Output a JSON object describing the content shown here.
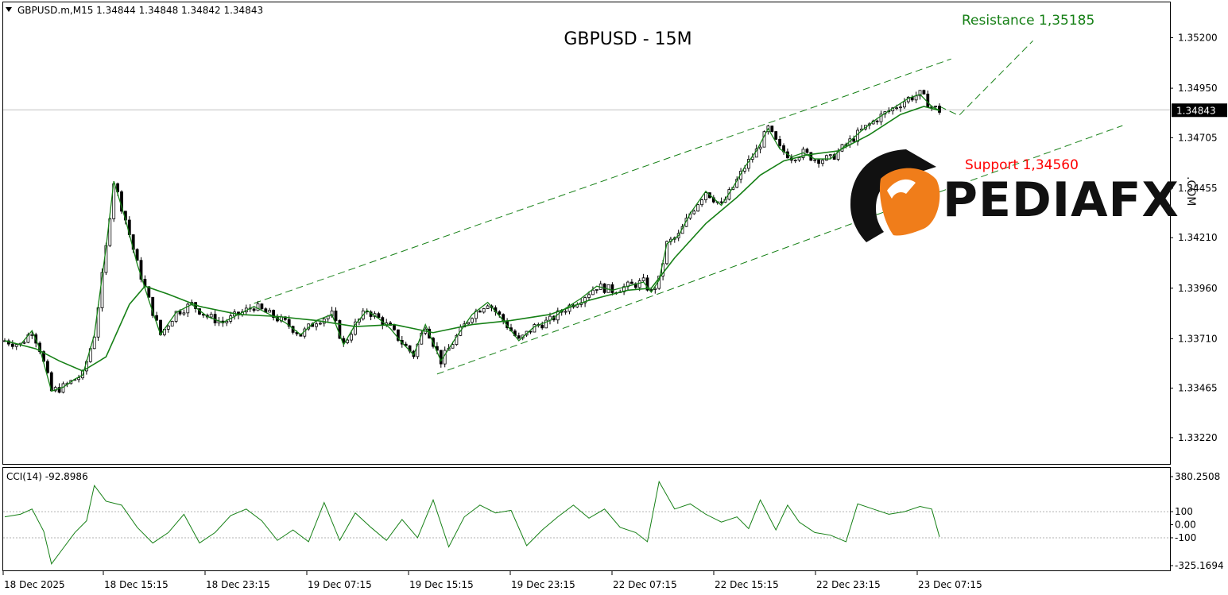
{
  "header": {
    "symbol_line": "GBPUSD.m,M15  1.34844 1.34848 1.34842 1.34843",
    "title": "GBPUSD - 15M"
  },
  "annotations": {
    "resistance": "Resistance 1,35185",
    "support": "Support 1,34560"
  },
  "logo": {
    "text": "PEDIAFX",
    "suffix": ".COM"
  },
  "current_price": {
    "label": "1.34843",
    "value": 1.34843
  },
  "cci": {
    "label": "CCI(14) -92.8986"
  },
  "colors": {
    "ma": "#168016",
    "resistance": "#168016",
    "support": "#ff0000",
    "logo_orange": "#f07d1a",
    "logo_dark": "#111111"
  },
  "chart_data": [
    {
      "type": "candlestick",
      "title": "GBPUSD - 15M",
      "x_ticks": [
        "18 Dec 2025",
        "18 Dec 15:15",
        "18 Dec 23:15",
        "19 Dec 07:15",
        "19 Dec 15:15",
        "19 Dec 23:15",
        "22 Dec 07:15",
        "22 Dec 15:15",
        "22 Dec 23:15",
        "23 Dec 07:15"
      ],
      "y_ticks": [
        "1.35200",
        "1.34950",
        "1.34705",
        "1.34455",
        "1.34210",
        "1.33960",
        "1.33710",
        "1.33465",
        "1.33220"
      ],
      "y_tick_values": [
        1.352,
        1.3495,
        1.34705,
        1.34455,
        1.3421,
        1.3396,
        1.3371,
        1.33465,
        1.3322
      ],
      "ylim": [
        1.3309,
        1.35375
      ],
      "price_path": [
        {
          "x": 0,
          "y": 1.337
        },
        {
          "x": 4,
          "y": 1.3368
        },
        {
          "x": 7,
          "y": 1.3375
        },
        {
          "x": 9,
          "y": 1.3366
        },
        {
          "x": 12,
          "y": 1.3345
        },
        {
          "x": 15,
          "y": 1.3347
        },
        {
          "x": 18,
          "y": 1.3351
        },
        {
          "x": 20,
          "y": 1.3353
        },
        {
          "x": 23,
          "y": 1.3373
        },
        {
          "x": 26,
          "y": 1.3416
        },
        {
          "x": 28,
          "y": 1.3449
        },
        {
          "x": 31,
          "y": 1.343
        },
        {
          "x": 34,
          "y": 1.3408
        },
        {
          "x": 37,
          "y": 1.339
        },
        {
          "x": 40,
          "y": 1.3373
        },
        {
          "x": 44,
          "y": 1.3384
        },
        {
          "x": 48,
          "y": 1.3388
        },
        {
          "x": 52,
          "y": 1.3382
        },
        {
          "x": 56,
          "y": 1.3379
        },
        {
          "x": 60,
          "y": 1.3383
        },
        {
          "x": 64,
          "y": 1.3387
        },
        {
          "x": 68,
          "y": 1.3383
        },
        {
          "x": 72,
          "y": 1.3379
        },
        {
          "x": 76,
          "y": 1.3373
        },
        {
          "x": 80,
          "y": 1.338
        },
        {
          "x": 84,
          "y": 1.3383
        },
        {
          "x": 87,
          "y": 1.3368
        },
        {
          "x": 90,
          "y": 1.3378
        },
        {
          "x": 93,
          "y": 1.3385
        },
        {
          "x": 96,
          "y": 1.3381
        },
        {
          "x": 99,
          "y": 1.3376
        },
        {
          "x": 102,
          "y": 1.3369
        },
        {
          "x": 105,
          "y": 1.3363
        },
        {
          "x": 108,
          "y": 1.3378
        },
        {
          "x": 110,
          "y": 1.3369
        },
        {
          "x": 112,
          "y": 1.336
        },
        {
          "x": 116,
          "y": 1.3372
        },
        {
          "x": 120,
          "y": 1.3383
        },
        {
          "x": 124,
          "y": 1.3389
        },
        {
          "x": 128,
          "y": 1.338
        },
        {
          "x": 132,
          "y": 1.337
        },
        {
          "x": 136,
          "y": 1.3377
        },
        {
          "x": 140,
          "y": 1.338
        },
        {
          "x": 144,
          "y": 1.3386
        },
        {
          "x": 148,
          "y": 1.3391
        },
        {
          "x": 152,
          "y": 1.3397
        },
        {
          "x": 156,
          "y": 1.3395
        },
        {
          "x": 160,
          "y": 1.3397
        },
        {
          "x": 164,
          "y": 1.3399
        },
        {
          "x": 166,
          "y": 1.3394
        },
        {
          "x": 168,
          "y": 1.34
        },
        {
          "x": 170,
          "y": 1.3418
        },
        {
          "x": 173,
          "y": 1.3422
        },
        {
          "x": 176,
          "y": 1.3433
        },
        {
          "x": 180,
          "y": 1.3444
        },
        {
          "x": 184,
          "y": 1.3437
        },
        {
          "x": 187,
          "y": 1.3446
        },
        {
          "x": 190,
          "y": 1.3456
        },
        {
          "x": 193,
          "y": 1.3464
        },
        {
          "x": 196,
          "y": 1.3475
        },
        {
          "x": 199,
          "y": 1.3465
        },
        {
          "x": 202,
          "y": 1.3461
        },
        {
          "x": 205,
          "y": 1.3463
        },
        {
          "x": 208,
          "y": 1.346
        },
        {
          "x": 212,
          "y": 1.346
        },
        {
          "x": 216,
          "y": 1.3467
        },
        {
          "x": 220,
          "y": 1.3474
        },
        {
          "x": 224,
          "y": 1.348
        },
        {
          "x": 228,
          "y": 1.3485
        },
        {
          "x": 232,
          "y": 1.349
        },
        {
          "x": 235,
          "y": 1.3492
        },
        {
          "x": 238,
          "y": 1.3486
        },
        {
          "x": 240,
          "y": 1.3484
        }
      ],
      "ma_series": [
        {
          "x": 0,
          "y": 1.337
        },
        {
          "x": 8,
          "y": 1.3366
        },
        {
          "x": 14,
          "y": 1.336
        },
        {
          "x": 20,
          "y": 1.3355
        },
        {
          "x": 26,
          "y": 1.3362
        },
        {
          "x": 32,
          "y": 1.3388
        },
        {
          "x": 36,
          "y": 1.3397
        },
        {
          "x": 42,
          "y": 1.3393
        },
        {
          "x": 50,
          "y": 1.3387
        },
        {
          "x": 60,
          "y": 1.3383
        },
        {
          "x": 70,
          "y": 1.3382
        },
        {
          "x": 80,
          "y": 1.338
        },
        {
          "x": 90,
          "y": 1.3377
        },
        {
          "x": 100,
          "y": 1.3378
        },
        {
          "x": 110,
          "y": 1.3374
        },
        {
          "x": 120,
          "y": 1.3378
        },
        {
          "x": 130,
          "y": 1.338
        },
        {
          "x": 140,
          "y": 1.3383
        },
        {
          "x": 150,
          "y": 1.339
        },
        {
          "x": 160,
          "y": 1.3395
        },
        {
          "x": 166,
          "y": 1.3396
        },
        {
          "x": 172,
          "y": 1.3411
        },
        {
          "x": 180,
          "y": 1.3428
        },
        {
          "x": 188,
          "y": 1.3441
        },
        {
          "x": 194,
          "y": 1.3452
        },
        {
          "x": 200,
          "y": 1.3459
        },
        {
          "x": 206,
          "y": 1.3462
        },
        {
          "x": 214,
          "y": 1.3464
        },
        {
          "x": 222,
          "y": 1.3472
        },
        {
          "x": 230,
          "y": 1.3482
        },
        {
          "x": 236,
          "y": 1.3486
        },
        {
          "x": 240,
          "y": 1.3484
        }
      ],
      "channel_upper": [
        {
          "x": 64,
          "y": 1.33885
        },
        {
          "x": 243,
          "y": 1.35095
        }
      ],
      "channel_lower": [
        {
          "x": 111,
          "y": 1.33535
        },
        {
          "x": 287,
          "y": 1.34765
        }
      ],
      "projection": [
        {
          "x": 240,
          "y": 1.3486
        },
        {
          "x": 245,
          "y": 1.34815
        },
        {
          "x": 264,
          "y": 1.35185
        }
      ],
      "current_price_line": 1.34843
    },
    {
      "type": "line",
      "title": "CCI(14) -92.8986",
      "y_ticks": [
        "380.2508",
        "100",
        "0.00",
        "-100",
        "-325.1694"
      ],
      "y_tick_values": [
        380.2508,
        100,
        0,
        -100,
        -325.1694
      ],
      "levels": [
        100,
        -100
      ],
      "ylim": [
        -325.1694,
        380.2508
      ],
      "series": [
        {
          "x": 0,
          "y": 60
        },
        {
          "x": 4,
          "y": 80
        },
        {
          "x": 7,
          "y": 120
        },
        {
          "x": 10,
          "y": -50
        },
        {
          "x": 12,
          "y": -300
        },
        {
          "x": 15,
          "y": -180
        },
        {
          "x": 18,
          "y": -60
        },
        {
          "x": 21,
          "y": 30
        },
        {
          "x": 23,
          "y": 300
        },
        {
          "x": 26,
          "y": 180
        },
        {
          "x": 30,
          "y": 150
        },
        {
          "x": 34,
          "y": -20
        },
        {
          "x": 38,
          "y": -140
        },
        {
          "x": 42,
          "y": -60
        },
        {
          "x": 46,
          "y": 80
        },
        {
          "x": 50,
          "y": -140
        },
        {
          "x": 54,
          "y": -60
        },
        {
          "x": 58,
          "y": 70
        },
        {
          "x": 62,
          "y": 120
        },
        {
          "x": 66,
          "y": 30
        },
        {
          "x": 70,
          "y": -120
        },
        {
          "x": 74,
          "y": -40
        },
        {
          "x": 78,
          "y": -130
        },
        {
          "x": 82,
          "y": 170
        },
        {
          "x": 86,
          "y": -120
        },
        {
          "x": 90,
          "y": 90
        },
        {
          "x": 94,
          "y": -20
        },
        {
          "x": 98,
          "y": -120
        },
        {
          "x": 102,
          "y": 40
        },
        {
          "x": 106,
          "y": -100
        },
        {
          "x": 110,
          "y": 190
        },
        {
          "x": 114,
          "y": -170
        },
        {
          "x": 118,
          "y": 60
        },
        {
          "x": 122,
          "y": 150
        },
        {
          "x": 126,
          "y": 90
        },
        {
          "x": 130,
          "y": 110
        },
        {
          "x": 134,
          "y": -160
        },
        {
          "x": 138,
          "y": -40
        },
        {
          "x": 142,
          "y": 60
        },
        {
          "x": 146,
          "y": 150
        },
        {
          "x": 150,
          "y": 50
        },
        {
          "x": 154,
          "y": 120
        },
        {
          "x": 158,
          "y": -20
        },
        {
          "x": 162,
          "y": -60
        },
        {
          "x": 165,
          "y": -130
        },
        {
          "x": 168,
          "y": 330
        },
        {
          "x": 172,
          "y": 120
        },
        {
          "x": 176,
          "y": 160
        },
        {
          "x": 180,
          "y": 80
        },
        {
          "x": 184,
          "y": 20
        },
        {
          "x": 188,
          "y": 60
        },
        {
          "x": 191,
          "y": -30
        },
        {
          "x": 194,
          "y": 190
        },
        {
          "x": 198,
          "y": -40
        },
        {
          "x": 201,
          "y": 150
        },
        {
          "x": 204,
          "y": 20
        },
        {
          "x": 208,
          "y": -60
        },
        {
          "x": 212,
          "y": -80
        },
        {
          "x": 216,
          "y": -130
        },
        {
          "x": 219,
          "y": 160
        },
        {
          "x": 223,
          "y": 120
        },
        {
          "x": 227,
          "y": 80
        },
        {
          "x": 231,
          "y": 100
        },
        {
          "x": 235,
          "y": 140
        },
        {
          "x": 238,
          "y": 120
        },
        {
          "x": 240,
          "y": -93
        }
      ]
    }
  ]
}
